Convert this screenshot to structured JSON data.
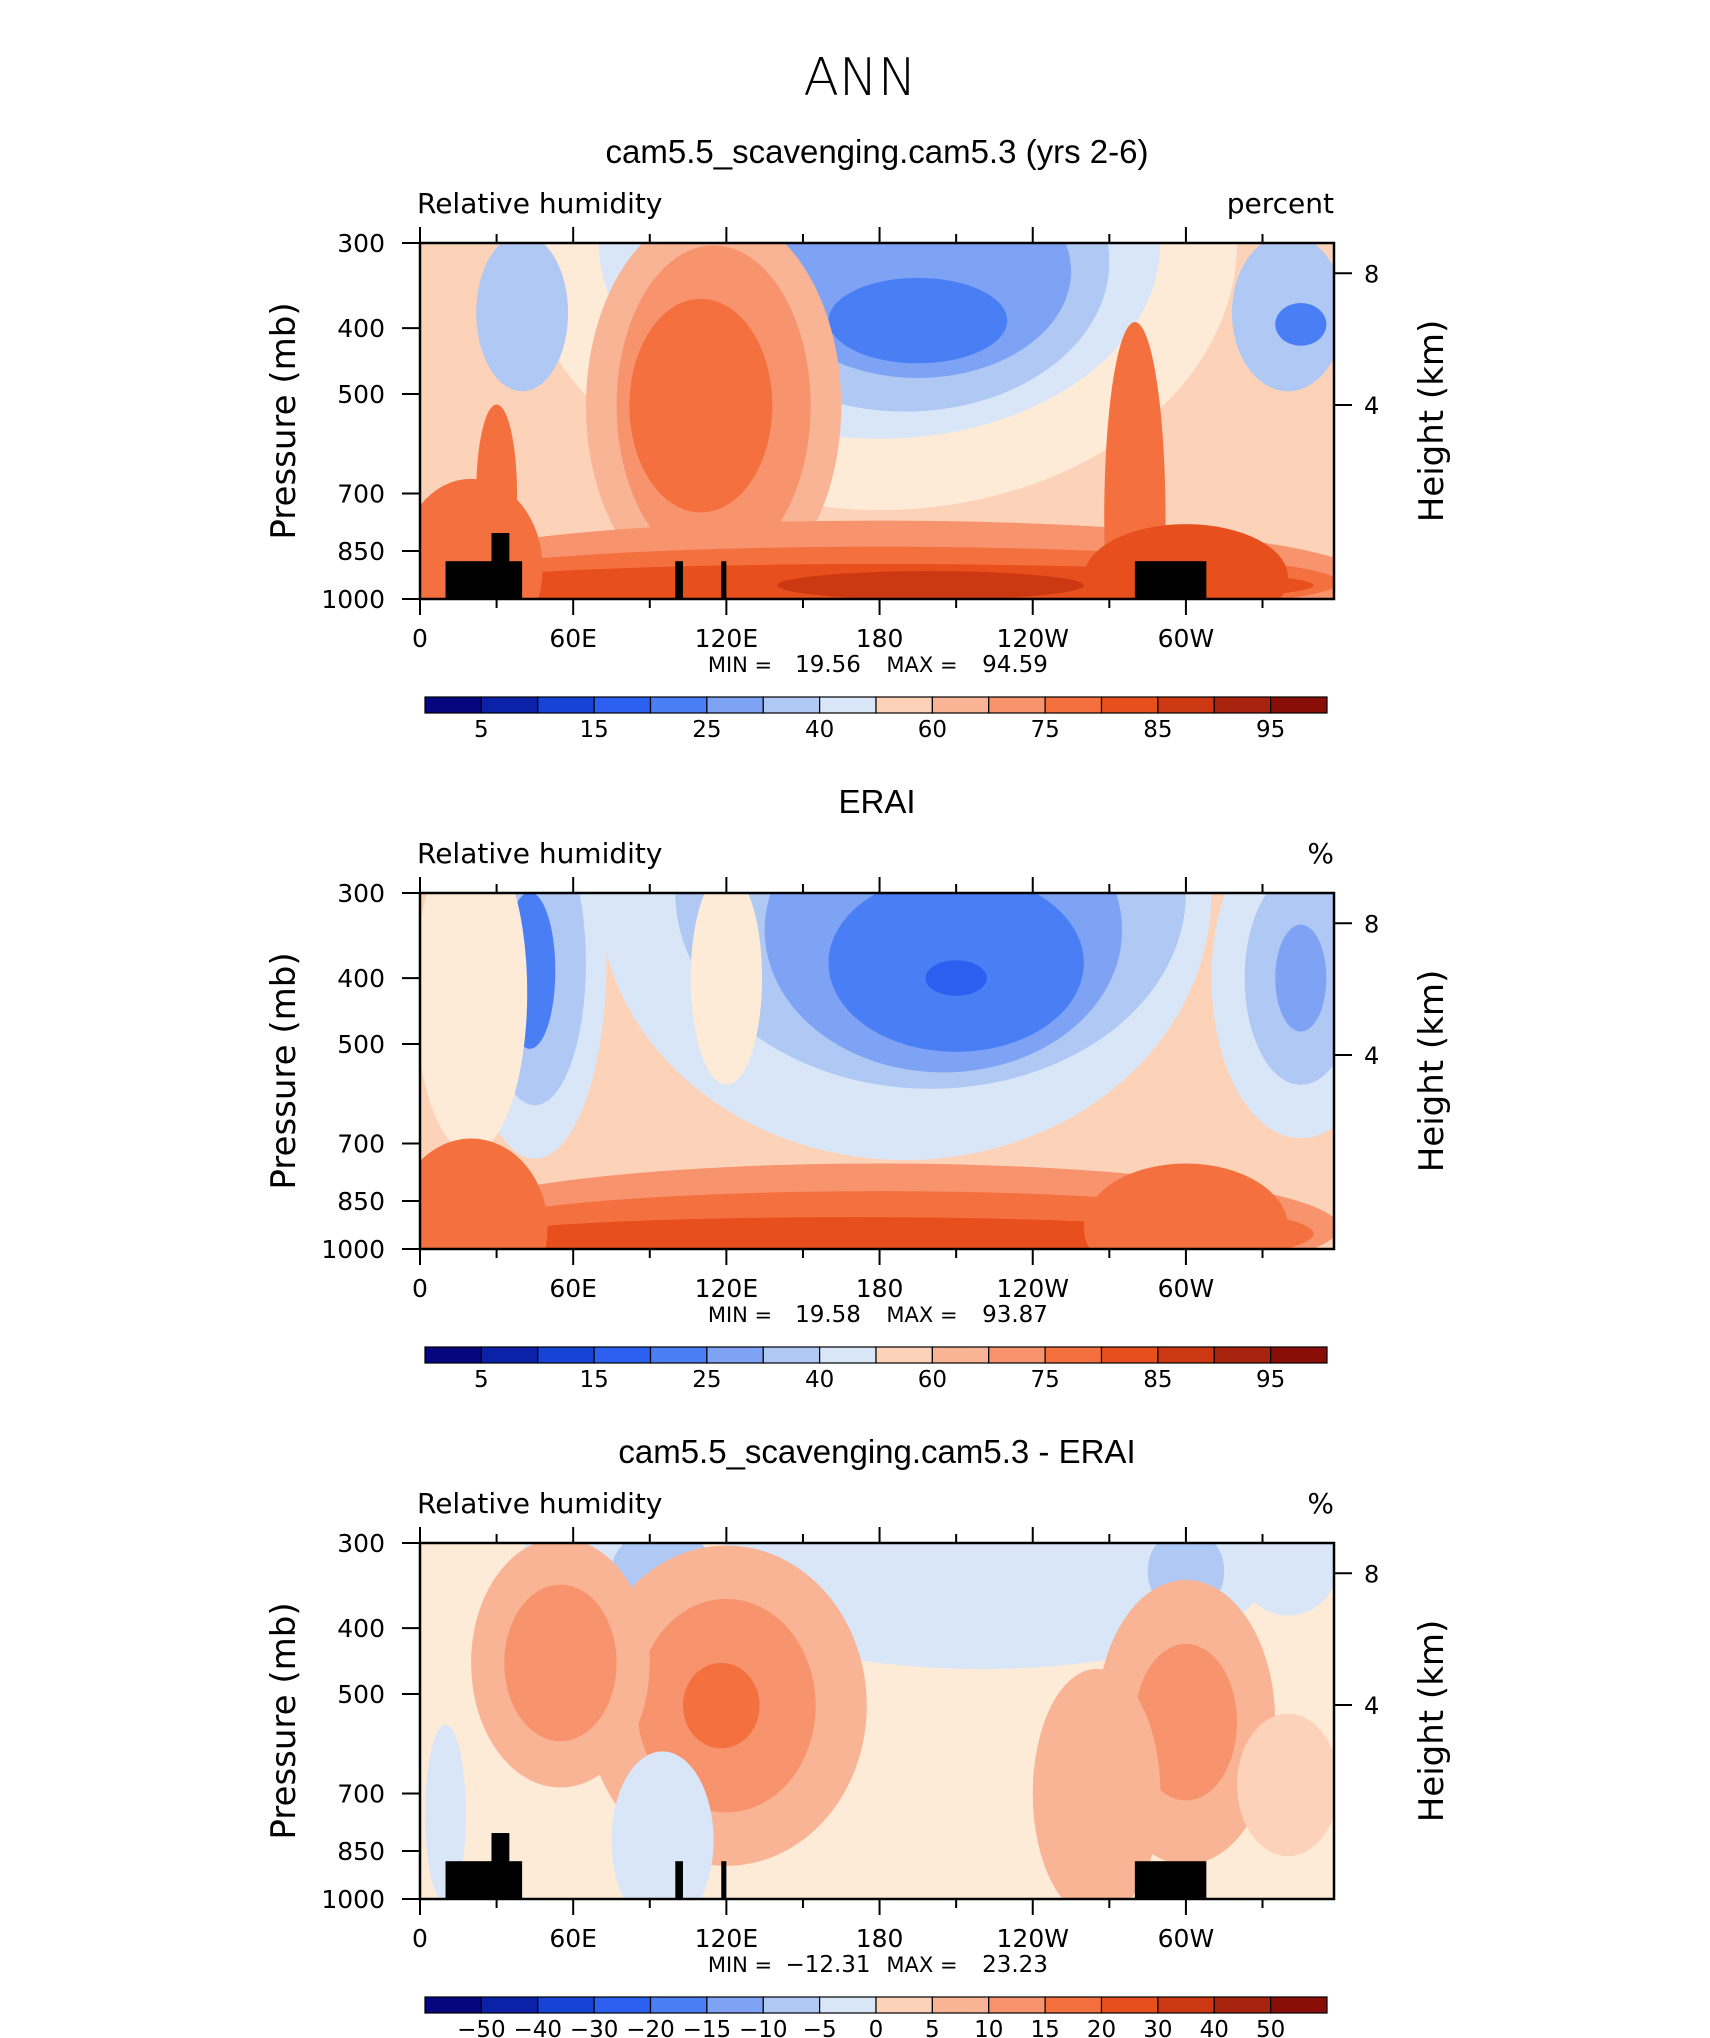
{
  "figure": {
    "title": "ANN",
    "colors": {
      "rh_palette": [
        "#06067e",
        "#0b22a8",
        "#1744d6",
        "#2b5ff0",
        "#4a7ef5",
        "#7ea3f5",
        "#b0c8f4",
        "#d9e6f8",
        "#fdebd8",
        "#fcd3b9",
        "#f9b496",
        "#f7936d",
        "#f4713f",
        "#e74f1d",
        "#cc3812",
        "#a8230d",
        "#8a0e08"
      ],
      "diff_palette": [
        "#06067e",
        "#0b22a8",
        "#1744d6",
        "#2b5ff0",
        "#4a7ef5",
        "#7ea3f5",
        "#b0c8f4",
        "#d9e6f8",
        "#fdebd8",
        "#fcd3b9",
        "#f9b496",
        "#f7936d",
        "#f4713f",
        "#e74f1d",
        "#cc3812",
        "#a8230d",
        "#8a0e08"
      ],
      "land_mask": "#000000"
    }
  },
  "chart_data": [
    {
      "type": "heatmap",
      "title": "cam5.5_scavenging.cam5.3 (yrs 2-6)",
      "left_label": "Relative humidity",
      "right_label": "percent",
      "ylabel": "Pressure (mb)",
      "y2label": "Height (km)",
      "x_ticks": [
        "0",
        "60E",
        "120E",
        "180",
        "120W",
        "60W"
      ],
      "y_ticks": [
        "300",
        "400",
        "500",
        "700",
        "850",
        "1000"
      ],
      "y2_ticks": [
        "8",
        "4"
      ],
      "stats": {
        "min_label": "MIN =",
        "min": "19.56",
        "max_label": "MAX =",
        "max": "94.59"
      },
      "levels": [
        "5",
        "15",
        "25",
        "40",
        "60",
        "75",
        "85",
        "95"
      ],
      "values_range": [
        19.56,
        94.59
      ]
    },
    {
      "type": "heatmap",
      "title": "ERAI",
      "left_label": "Relative humidity",
      "right_label": "%",
      "ylabel": "Pressure (mb)",
      "y2label": "Height (km)",
      "x_ticks": [
        "0",
        "60E",
        "120E",
        "180",
        "120W",
        "60W"
      ],
      "y_ticks": [
        "300",
        "400",
        "500",
        "700",
        "850",
        "1000"
      ],
      "y2_ticks": [
        "8",
        "4"
      ],
      "stats": {
        "min_label": "MIN =",
        "min": "19.58",
        "max_label": "MAX =",
        "max": "93.87"
      },
      "levels": [
        "5",
        "15",
        "25",
        "40",
        "60",
        "75",
        "85",
        "95"
      ],
      "values_range": [
        19.58,
        93.87
      ]
    },
    {
      "type": "heatmap",
      "title": "cam5.5_scavenging.cam5.3 - ERAI",
      "left_label": "Relative humidity",
      "right_label": "%",
      "ylabel": "Pressure (mb)",
      "y2label": "Height (km)",
      "x_ticks": [
        "0",
        "60E",
        "120E",
        "180",
        "120W",
        "60W"
      ],
      "y_ticks": [
        "300",
        "400",
        "500",
        "700",
        "850",
        "1000"
      ],
      "y2_ticks": [
        "8",
        "4"
      ],
      "stats": {
        "min_label": "MIN =",
        "min": "−12.31",
        "max_label": "MAX =",
        "max": "23.23"
      },
      "levels": [
        "−50",
        "−40",
        "−30",
        "−20",
        "−15",
        "−10",
        "−5",
        "0",
        "5",
        "10",
        "15",
        "20",
        "30",
        "40",
        "50"
      ],
      "values_range": [
        -12.31,
        23.23
      ]
    }
  ]
}
